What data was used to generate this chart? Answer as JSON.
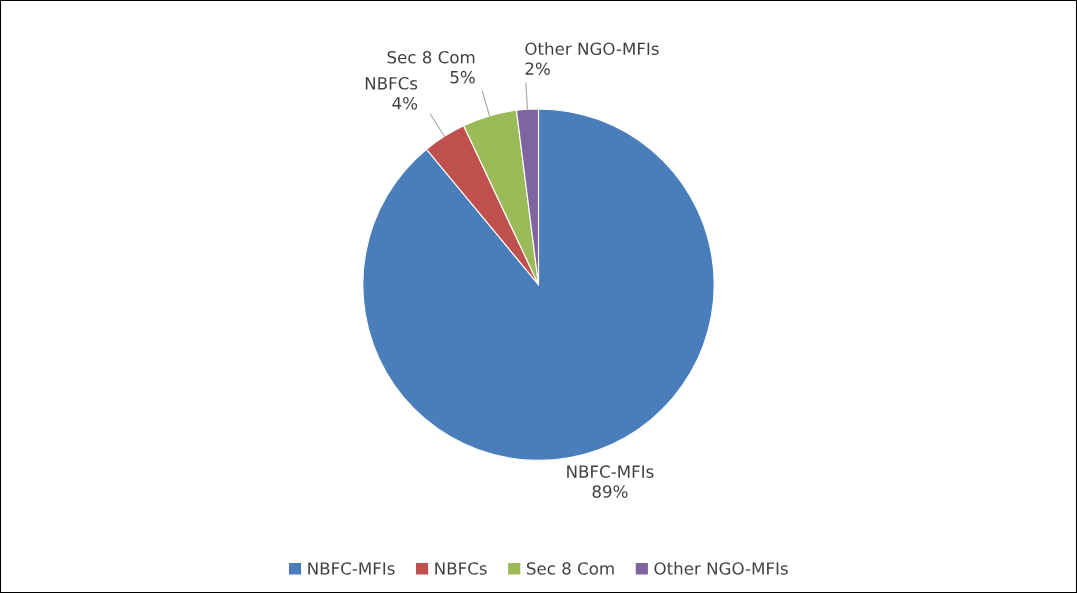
{
  "chart_data": {
    "type": "pie",
    "categories": [
      "NBFC-MFIs",
      "NBFCs",
      "Sec 8 Com",
      "Other NGO-MFIs"
    ],
    "values": [
      89,
      4,
      5,
      2
    ],
    "value_labels": [
      "89%",
      "4%",
      "5%",
      "2%"
    ],
    "colors": [
      "#4a7ebb",
      "#c0504d",
      "#9bbb59",
      "#8064a2"
    ],
    "legend": "bottom"
  }
}
